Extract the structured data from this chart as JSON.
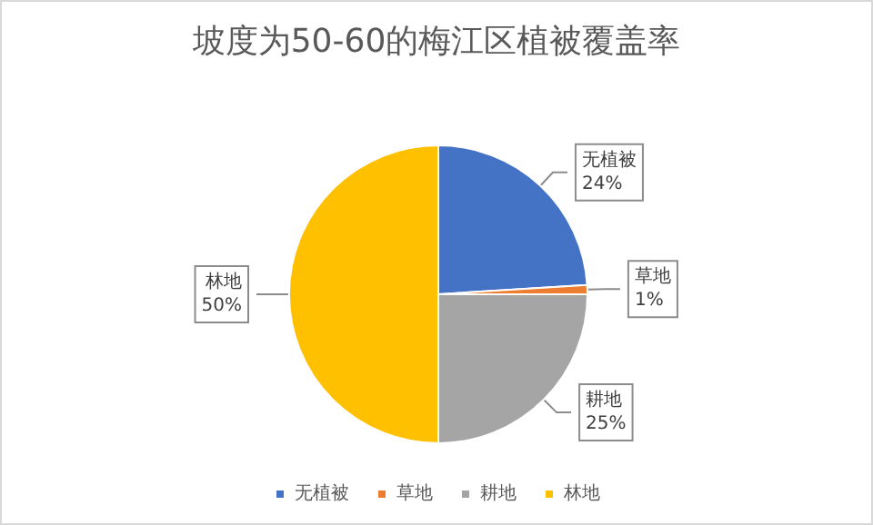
{
  "chart_data": {
    "type": "pie",
    "title": "坡度为50-60的梅江区植被覆盖率",
    "categories": [
      "无植被",
      "草地",
      "耕地",
      "林地"
    ],
    "values": [
      24,
      1,
      25,
      50
    ],
    "value_labels": [
      "24%",
      "1%",
      "25%",
      "50%"
    ],
    "colors": [
      "#4472c4",
      "#ed7d31",
      "#a5a5a5",
      "#ffc000"
    ],
    "legend": "bottom"
  }
}
